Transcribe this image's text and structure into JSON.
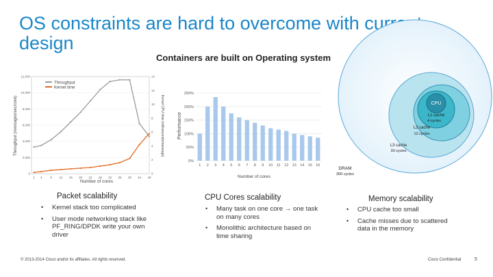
{
  "slide": {
    "title": "OS constraints are hard to overcome with current design",
    "subtitle": "Containers are built on Operating system"
  },
  "left_chart": {
    "legend": [
      "Throughput",
      "Kernel time"
    ],
    "ylabel": "Throughput (messages/sec/core)",
    "y2label": "Kernel CPU time (milliseconds/message)",
    "xlabel": "Number of cores",
    "x_ticks": [
      "1",
      "4",
      "8",
      "12",
      "16",
      "20",
      "24",
      "28",
      "32",
      "36",
      "40",
      "44",
      "48"
    ],
    "y_ticks": [
      "0",
      "2,000",
      "4,000",
      "6,000",
      "8,000",
      "10,000",
      "12,000"
    ],
    "y2_ticks": [
      "0",
      "2",
      "4",
      "6",
      "8",
      "10",
      "12",
      "14"
    ]
  },
  "mid_chart": {
    "ylabel": "Performance",
    "xlabel": "Number of cores",
    "y_ticks": [
      "0%",
      "50%",
      "100%",
      "150%",
      "200%",
      "250%"
    ]
  },
  "memory": {
    "cpu": "CPU",
    "l1": [
      "L1 cache",
      "4 cycles"
    ],
    "l2": [
      "L2 cache",
      "12 cycles"
    ],
    "l3": [
      "L3 cache",
      "30 cycles"
    ],
    "dram": [
      "DRAM",
      "300 cycles"
    ]
  },
  "columns": [
    {
      "title": "Packet scalability",
      "bullets": [
        "Kernel stack too complicated",
        "User mode networking stack like PF_RING/DPDK write your own driver"
      ]
    },
    {
      "title": "CPU Cores scalability",
      "bullets": [
        "Many task on one core → one task on many cores",
        "Monolithic architecture based on time sharing"
      ]
    },
    {
      "title": "Memory scalability",
      "bullets": [
        "CPU cache too small",
        "Cache misses due to scattered data in the memory"
      ]
    }
  ],
  "footer": {
    "copyright": "© 2013-2014 Cisco and/or its affiliates. All rights reserved.",
    "confidential": "Cisco Confidential",
    "page": "5"
  },
  "chart_data": [
    {
      "type": "line",
      "title": "",
      "xlabel": "Number of cores",
      "ylabel": "Throughput (messages/sec/core)",
      "x": [
        1,
        4,
        8,
        12,
        16,
        20,
        24,
        28,
        32,
        36,
        40,
        44,
        48
      ],
      "xlim": [
        0,
        48
      ],
      "ylim": [
        0,
        12000
      ],
      "y2lim": [
        0,
        14
      ],
      "series": [
        {
          "name": "Throughput",
          "axis": "left",
          "color": "#9a9a9a",
          "values": [
            3300,
            3500,
            4200,
            5200,
            6400,
            7600,
            9000,
            10400,
            11400,
            11600,
            11600,
            6200,
            4600
          ]
        },
        {
          "name": "Kernel time",
          "axis": "right",
          "color": "#e06a1e",
          "values": [
            0.2,
            0.3,
            0.5,
            0.6,
            0.7,
            0.8,
            0.9,
            1.1,
            1.3,
            1.6,
            2.2,
            4.2,
            5.8
          ]
        }
      ]
    },
    {
      "type": "bar",
      "title": "",
      "xlabel": "Number of cores",
      "ylabel": "Performance",
      "categories": [
        "1",
        "2",
        "3",
        "4",
        "5",
        "6",
        "7",
        "8",
        "9",
        "10",
        "11",
        "12",
        "13",
        "14",
        "15",
        "16"
      ],
      "values": [
        100,
        200,
        235,
        200,
        175,
        160,
        150,
        140,
        130,
        120,
        115,
        110,
        100,
        95,
        90,
        85
      ],
      "ylim": [
        0,
        250
      ],
      "color": "#a8c8ec"
    }
  ]
}
